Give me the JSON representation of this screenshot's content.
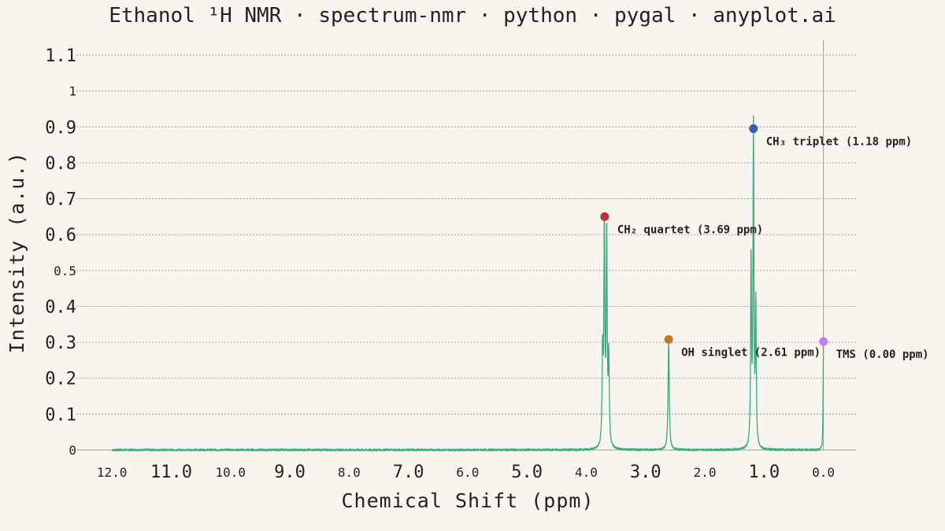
{
  "title": "Ethanol ¹H NMR · spectrum-nmr · python · pygal · anyplot.ai",
  "chart_data": {
    "type": "line",
    "title": "Ethanol ¹H NMR · spectrum-nmr · python · pygal · anyplot.ai",
    "xlabel": "Chemical Shift (ppm)",
    "ylabel": "Intensity (a.u.)",
    "x_reversed": true,
    "xlim": [
      12.6,
      -0.55
    ],
    "ylim": [
      0,
      1.1
    ],
    "grid": "horizontal",
    "x_ticks": [
      {
        "value": 12.0,
        "label": "12.0",
        "major": false
      },
      {
        "value": 11.0,
        "label": "11.0",
        "major": true
      },
      {
        "value": 10.0,
        "label": "10.0",
        "major": false
      },
      {
        "value": 9.0,
        "label": "9.0",
        "major": true
      },
      {
        "value": 8.0,
        "label": "8.0",
        "major": false
      },
      {
        "value": 7.0,
        "label": "7.0",
        "major": true
      },
      {
        "value": 6.0,
        "label": "6.0",
        "major": false
      },
      {
        "value": 5.0,
        "label": "5.0",
        "major": true
      },
      {
        "value": 4.0,
        "label": "4.0",
        "major": false
      },
      {
        "value": 3.0,
        "label": "3.0",
        "major": true
      },
      {
        "value": 2.0,
        "label": "2.0",
        "major": false
      },
      {
        "value": 1.0,
        "label": "1.0",
        "major": true
      },
      {
        "value": 0.0,
        "label": "0.0",
        "major": false
      }
    ],
    "y_ticks": [
      {
        "value": 0,
        "label": "0",
        "major": false
      },
      {
        "value": 0.1,
        "label": "0.1",
        "major": true
      },
      {
        "value": 0.2,
        "label": "0.2",
        "major": true
      },
      {
        "value": 0.3,
        "label": "0.3",
        "major": true
      },
      {
        "value": 0.4,
        "label": "0.4",
        "major": true
      },
      {
        "value": 0.5,
        "label": "0.5",
        "major": false
      },
      {
        "value": 0.6,
        "label": "0.6",
        "major": true
      },
      {
        "value": 0.7,
        "label": "0.7",
        "major": true
      },
      {
        "value": 0.8,
        "label": "0.8",
        "major": true
      },
      {
        "value": 0.9,
        "label": "0.9",
        "major": true
      },
      {
        "value": 1,
        "label": "1",
        "major": false
      },
      {
        "value": 1.1,
        "label": "1.1",
        "major": true
      }
    ],
    "spectrum": {
      "color": "#3aa882",
      "x_range": [
        0,
        12.0
      ],
      "baseline_noise": 0.003,
      "peaks": [
        {
          "center": 3.725,
          "height": 0.25,
          "width": 0.01
        },
        {
          "center": 3.695,
          "height": 0.6,
          "width": 0.01
        },
        {
          "center": 3.655,
          "height": 0.59,
          "width": 0.01
        },
        {
          "center": 3.62,
          "height": 0.24,
          "width": 0.01
        },
        {
          "center": 2.61,
          "height": 0.3,
          "width": 0.012
        },
        {
          "center": 1.22,
          "height": 0.51,
          "width": 0.009
        },
        {
          "center": 1.18,
          "height": 0.89,
          "width": 0.009
        },
        {
          "center": 1.14,
          "height": 0.39,
          "width": 0.009
        },
        {
          "center": 0.0,
          "height": 0.29,
          "width": 0.006
        }
      ]
    },
    "annotations": [
      {
        "x": 1.18,
        "y": 0.895,
        "label": "CH₃ triplet (1.18 ppm)",
        "color": "#3a5fa8"
      },
      {
        "x": 3.69,
        "y": 0.65,
        "label": "CH₂ quartet (3.69 ppm)",
        "color": "#b83232"
      },
      {
        "x": 2.61,
        "y": 0.308,
        "label": "OH singlet (2.61 ppm)",
        "color": "#c07a28"
      },
      {
        "x": 0.0,
        "y": 0.302,
        "label": "TMS (0.00 ppm)",
        "color": "#c07ff0"
      }
    ],
    "reference_line": {
      "x": 0.0,
      "color": "#9a9a9a"
    }
  }
}
